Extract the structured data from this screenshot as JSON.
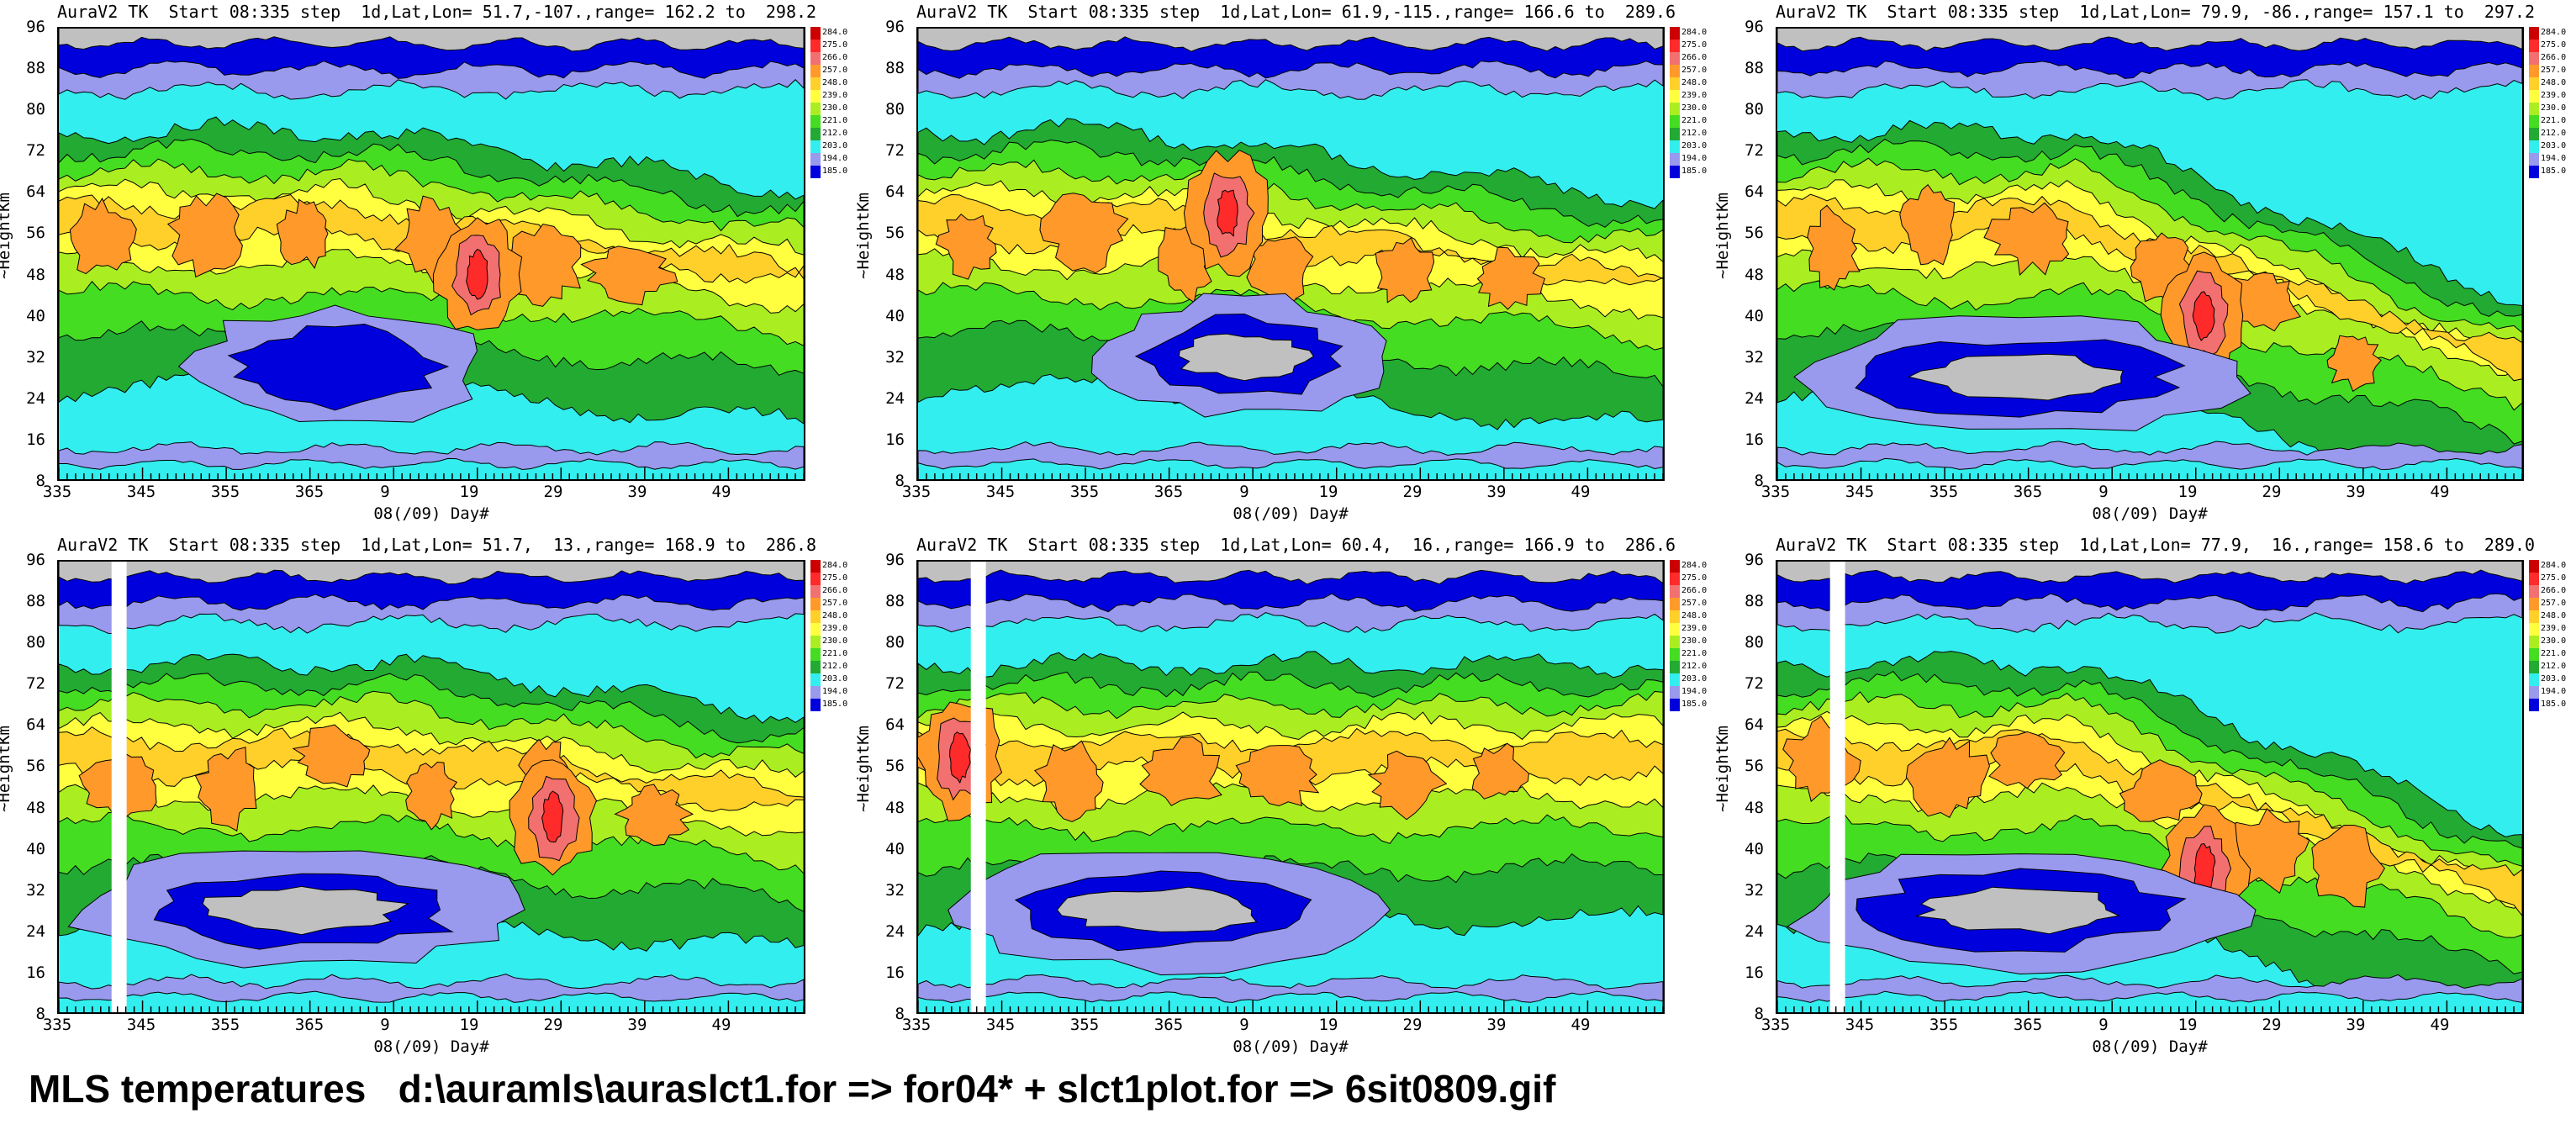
{
  "caption": "MLS temperatures   d:\\auramls\\auraslct1.for => for04* + slct1plot.for => 6sit0809.gif",
  "legend": {
    "labels": [
      "284.0",
      "275.0",
      "266.0",
      "257.0",
      "248.0",
      "239.0",
      "230.0",
      "221.0",
      "212.0",
      "203.0",
      "194.0",
      "185.0"
    ],
    "colors": [
      "#cc0000",
      "#ff2a2a",
      "#f27070",
      "#ff9a2a",
      "#ffd02a",
      "#ffff40",
      "#aaee22",
      "#44dd22",
      "#22aa33",
      "#33eeee",
      "#9999ee",
      "#0000dd"
    ]
  },
  "colors": {
    "gray": "#c0c0c0",
    "blue": "#0000dd",
    "violet": "#9999ee",
    "cyan": "#33eeee",
    "dkgreen": "#22aa33",
    "green": "#44dd22",
    "ltgreen": "#aaee22",
    "yellow": "#ffff40",
    "gold": "#ffd02a",
    "orange": "#ff9a2a",
    "salmon": "#f27070",
    "red": "#ff2a2a"
  },
  "chart_data": [
    {
      "type": "heatmap",
      "title": "AuraV2 TK  Start 08:335 step  1d,Lat,Lon= 51.7,-107.,range= 162.2 to  298.2",
      "xlabel": "08(/09) Day#",
      "ylabel": "~HeightKm",
      "x_ticks": [
        "335",
        "345",
        "355",
        "365",
        "9",
        "19",
        "29",
        "39",
        "49"
      ],
      "y_ticks": [
        "96",
        "88",
        "80",
        "72",
        "64",
        "56",
        "48",
        "40",
        "32",
        "24",
        "16",
        "8"
      ],
      "ylim": [
        8,
        96
      ],
      "range": [
        162.2,
        298.2
      ],
      "lat": 51.7,
      "lon": -107,
      "peak": {
        "day": 385,
        "height": 48
      }
    },
    {
      "type": "heatmap",
      "title": "AuraV2 TK  Start 08:335 step  1d,Lat,Lon= 61.9,-115.,range= 166.6 to  289.6",
      "xlabel": "08(/09) Day#",
      "ylabel": "~HeightKm",
      "x_ticks": [
        "335",
        "345",
        "355",
        "365",
        "9",
        "19",
        "29",
        "39",
        "49"
      ],
      "y_ticks": [
        "96",
        "88",
        "80",
        "72",
        "64",
        "56",
        "48",
        "40",
        "32",
        "24",
        "16",
        "8"
      ],
      "ylim": [
        8,
        96
      ],
      "range": [
        166.6,
        289.6
      ],
      "lat": 61.9,
      "lon": -115,
      "peak": {
        "day": 372,
        "height": 60
      }
    },
    {
      "type": "heatmap",
      "title": "AuraV2 TK  Start 08:335 step  1d,Lat,Lon= 79.9, -86.,range= 157.1 to  297.2",
      "xlabel": "08(/09) Day#",
      "ylabel": "~HeightKm",
      "x_ticks": [
        "335",
        "345",
        "355",
        "365",
        "9",
        "19",
        "29",
        "39",
        "49"
      ],
      "y_ticks": [
        "96",
        "88",
        "80",
        "72",
        "64",
        "56",
        "48",
        "40",
        "32",
        "24",
        "16",
        "8"
      ],
      "ylim": [
        8,
        96
      ],
      "range": [
        157.1,
        297.2
      ],
      "lat": 79.9,
      "lon": -86,
      "peak": {
        "day": 386,
        "height": 40
      }
    },
    {
      "type": "heatmap",
      "title": "AuraV2 TK  Start 08:335 step  1d,Lat,Lon= 51.7,  13.,range= 168.9 to  286.8",
      "xlabel": "08(/09) Day#",
      "ylabel": "~HeightKm",
      "x_ticks": [
        "335",
        "345",
        "355",
        "365",
        "9",
        "19",
        "29",
        "39",
        "49"
      ],
      "y_ticks": [
        "96",
        "88",
        "80",
        "72",
        "64",
        "56",
        "48",
        "40",
        "32",
        "24",
        "16",
        "8"
      ],
      "ylim": [
        8,
        96
      ],
      "range": [
        168.9,
        286.8
      ],
      "lat": 51.7,
      "lon": 13,
      "peak": {
        "day": 394,
        "height": 46
      }
    },
    {
      "type": "heatmap",
      "title": "AuraV2 TK  Start 08:335 step  1d,Lat,Lon= 60.4,  16.,range= 166.9 to  286.6",
      "xlabel": "08(/09) Day#",
      "ylabel": "~HeightKm",
      "x_ticks": [
        "335",
        "345",
        "355",
        "365",
        "9",
        "19",
        "29",
        "39",
        "49"
      ],
      "y_ticks": [
        "96",
        "88",
        "80",
        "72",
        "64",
        "56",
        "48",
        "40",
        "32",
        "24",
        "16",
        "8"
      ],
      "ylim": [
        8,
        96
      ],
      "range": [
        166.9,
        286.6
      ],
      "lat": 60.4,
      "lon": 16,
      "peak": {
        "day": 340,
        "height": 58
      }
    },
    {
      "type": "heatmap",
      "title": "AuraV2 TK  Start 08:335 step  1d,Lat,Lon= 77.9,  16.,range= 158.6 to  289.0",
      "xlabel": "08(/09) Day#",
      "ylabel": "~HeightKm",
      "x_ticks": [
        "335",
        "345",
        "355",
        "365",
        "9",
        "19",
        "29",
        "39",
        "49"
      ],
      "y_ticks": [
        "96",
        "88",
        "80",
        "72",
        "64",
        "56",
        "48",
        "40",
        "32",
        "24",
        "16",
        "8"
      ],
      "ylim": [
        8,
        96
      ],
      "range": [
        158.6,
        289.0
      ],
      "lat": 77.9,
      "lon": 16,
      "peak": {
        "day": 386,
        "height": 36
      }
    }
  ]
}
